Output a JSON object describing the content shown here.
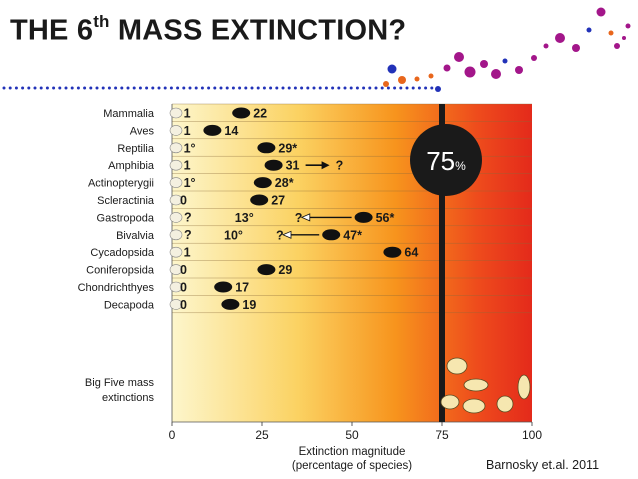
{
  "title": {
    "main_before": "THE 6",
    "superscript": "th",
    "main_after": " MASS EXTINCTION?"
  },
  "citation": "Barnosky et.al. 2011",
  "badge": {
    "value": "75",
    "unit": "%"
  },
  "colors": {
    "accent_dots": "#a3168a",
    "blue_dots": "#2232b8",
    "orange_dots": "#e8661c",
    "gradient_start": "#fdf3c0",
    "gradient_mid": "#f9a327",
    "gradient_end": "#e42a1b",
    "threshold_line": "#1a1a1a"
  },
  "chart_data": {
    "type": "bar",
    "categories": [
      "Mammalia",
      "Aves",
      "Reptilia",
      "Amphibia",
      "Actinopterygii",
      "Scleractinia",
      "Gastropoda",
      "Bivalvia",
      "Cycadopsida",
      "Coniferopsida",
      "Chondrichthyes",
      "Decapoda"
    ],
    "series": [
      {
        "values": [
          1,
          1,
          1,
          1,
          1,
          0,
          13,
          10,
          1,
          0,
          0,
          0
        ],
        "labels": [
          "1",
          "1",
          "1°",
          "1",
          "1°",
          "0",
          "13°",
          "10°",
          "1",
          "0",
          "0",
          "0"
        ],
        "uncertain": [
          false,
          false,
          false,
          false,
          false,
          false,
          true,
          true,
          false,
          false,
          false,
          false
        ]
      },
      {
        "values": [
          22,
          14,
          29,
          31,
          28,
          27,
          56,
          47,
          64,
          29,
          17,
          19
        ],
        "labels": [
          "22",
          "14",
          "29*",
          "31",
          "28*",
          "27",
          "56*",
          "47*",
          "64",
          "29",
          "17",
          "19"
        ]
      }
    ],
    "arrows": [
      {
        "category": "Amphibia",
        "from": 31,
        "toward": "higher",
        "label": "?"
      },
      {
        "category": "Gastropoda",
        "from": 56,
        "toward": "lower",
        "label": "?"
      },
      {
        "category": "Bivalvia",
        "from": 47,
        "toward": "lower",
        "label": "?"
      }
    ],
    "summary_row": {
      "label_line1": "Big Five mass",
      "label_line2": "extinctions"
    },
    "threshold": 75,
    "xlabel_line1": "Extinction magnitude",
    "xlabel_line2": "(percentage of species)",
    "xlim": [
      0,
      100
    ],
    "xticks": [
      0,
      25,
      50,
      75,
      100
    ],
    "grid": true
  }
}
